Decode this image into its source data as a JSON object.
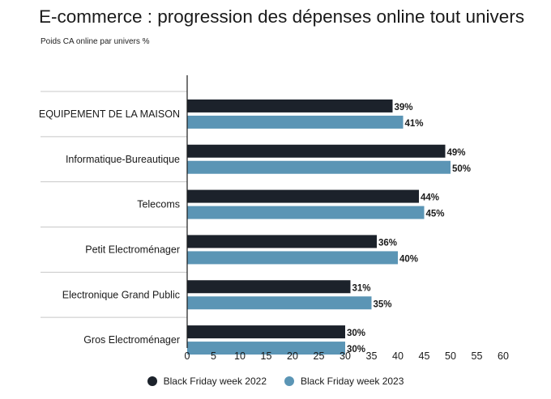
{
  "chart_data": {
    "type": "bar",
    "orientation": "horizontal",
    "title": "E-commerce : progression des dépenses online tout univers",
    "subtitle": "Poids CA online par univers  %",
    "categories": [
      "EQUIPEMENT DE LA MAISON",
      "Informatique-Bureautique",
      "Telecoms",
      "Petit Electroménager",
      "Electronique Grand Public",
      "Gros Electroménager"
    ],
    "series": [
      {
        "name": "Black Friday week 2022",
        "color": "#1c222b",
        "values": [
          39,
          49,
          44,
          36,
          31,
          30
        ],
        "labels": [
          "39%",
          "49%",
          "44%",
          "36%",
          "31%",
          "30%"
        ]
      },
      {
        "name": "Black Friday week 2023",
        "color": "#5b95b5",
        "values": [
          41,
          50,
          45,
          40,
          35,
          30
        ],
        "labels": [
          "41%",
          "50%",
          "45%",
          "40%",
          "35%",
          "30%"
        ]
      }
    ],
    "xlim": [
      0,
      60
    ],
    "xticks": [
      0,
      5,
      10,
      15,
      20,
      25,
      30,
      35,
      40,
      45,
      50,
      55,
      60
    ],
    "legend_position": "bottom"
  }
}
